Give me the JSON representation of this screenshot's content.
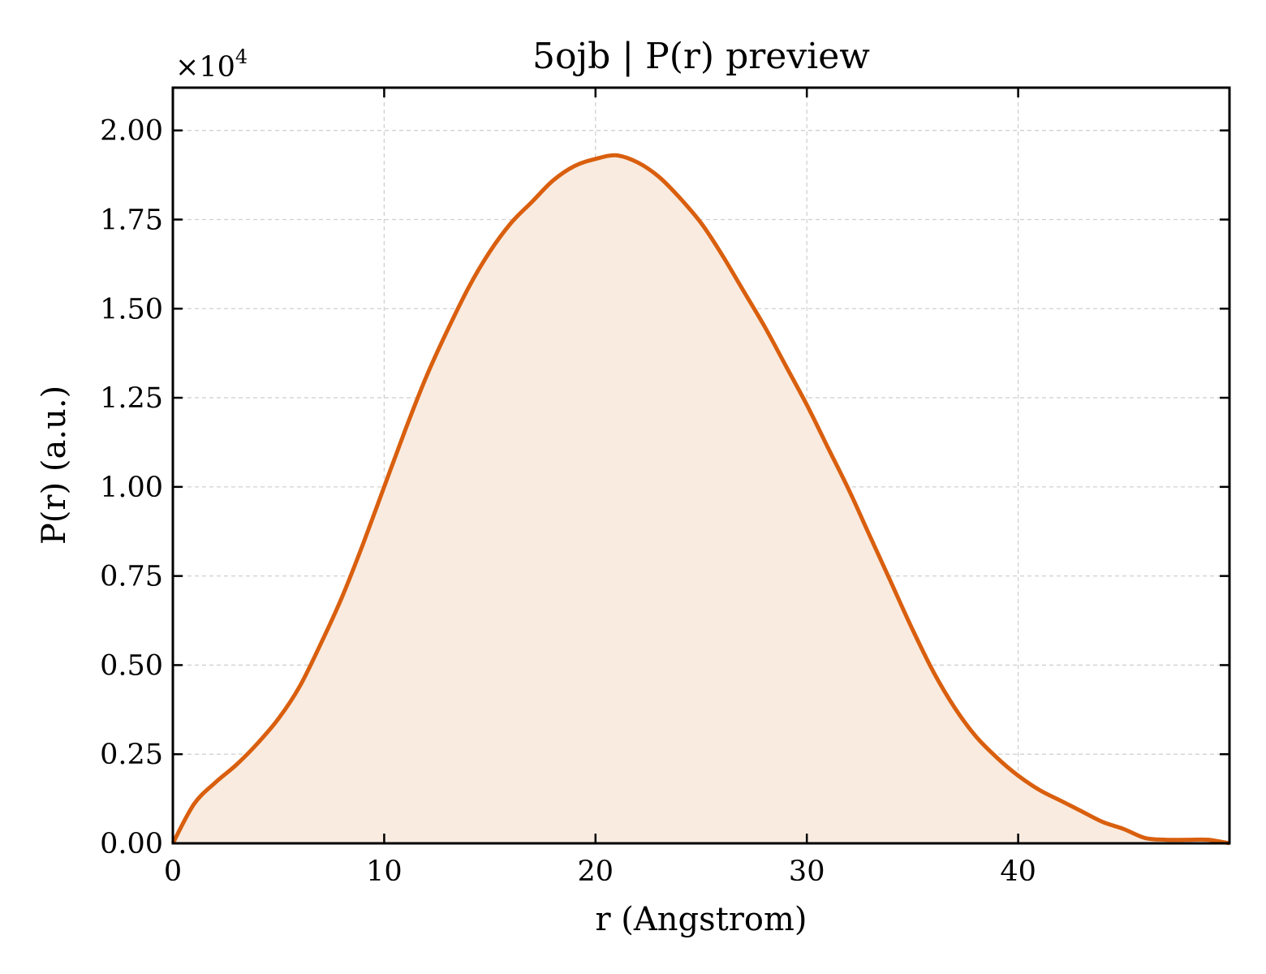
{
  "chart_data": {
    "type": "area",
    "title": "5ojb | P(r) preview",
    "xlabel": "r (Angstrom)",
    "ylabel": "P(r) (a.u.)",
    "y_offset_label": "×10",
    "y_offset_exponent": "4",
    "xlim": [
      0,
      50
    ],
    "ylim": [
      0,
      2.12
    ],
    "y_scale_factor": 10000,
    "grid": true,
    "x_ticks": [
      0,
      10,
      20,
      30,
      40
    ],
    "x_tick_labels": [
      "0",
      "10",
      "20",
      "30",
      "40"
    ],
    "y_ticks": [
      0,
      0.25,
      0.5,
      0.75,
      1.0,
      1.25,
      1.5,
      1.75,
      2.0
    ],
    "y_tick_labels": [
      "0.00",
      "0.25",
      "0.50",
      "0.75",
      "1.00",
      "1.25",
      "1.50",
      "1.75",
      "2.00"
    ],
    "colors": {
      "line": "#d95f0e",
      "fill": "#f9ebe0",
      "grid": "#d0d0d0"
    },
    "series": [
      {
        "x": [
          0,
          1,
          2,
          3,
          4,
          5,
          6,
          7,
          8,
          9,
          10,
          11,
          12,
          13,
          14,
          15,
          16,
          17,
          18,
          19,
          20,
          21,
          22,
          23,
          24,
          25,
          26,
          27,
          28,
          29,
          30,
          31,
          32,
          33,
          34,
          35,
          36,
          37,
          38,
          39,
          40,
          41,
          42,
          43,
          44,
          45,
          46,
          47,
          48,
          49,
          50
        ],
        "values": [
          0,
          0.11,
          0.17,
          0.22,
          0.28,
          0.35,
          0.44,
          0.56,
          0.69,
          0.84,
          1.0,
          1.16,
          1.31,
          1.44,
          1.56,
          1.66,
          1.74,
          1.8,
          1.86,
          1.9,
          1.92,
          1.93,
          1.91,
          1.87,
          1.81,
          1.74,
          1.65,
          1.55,
          1.45,
          1.34,
          1.23,
          1.11,
          0.99,
          0.86,
          0.73,
          0.6,
          0.48,
          0.38,
          0.3,
          0.24,
          0.19,
          0.15,
          0.12,
          0.09,
          0.06,
          0.04,
          0.015,
          0.01,
          0.01,
          0.01,
          0
        ]
      }
    ]
  }
}
